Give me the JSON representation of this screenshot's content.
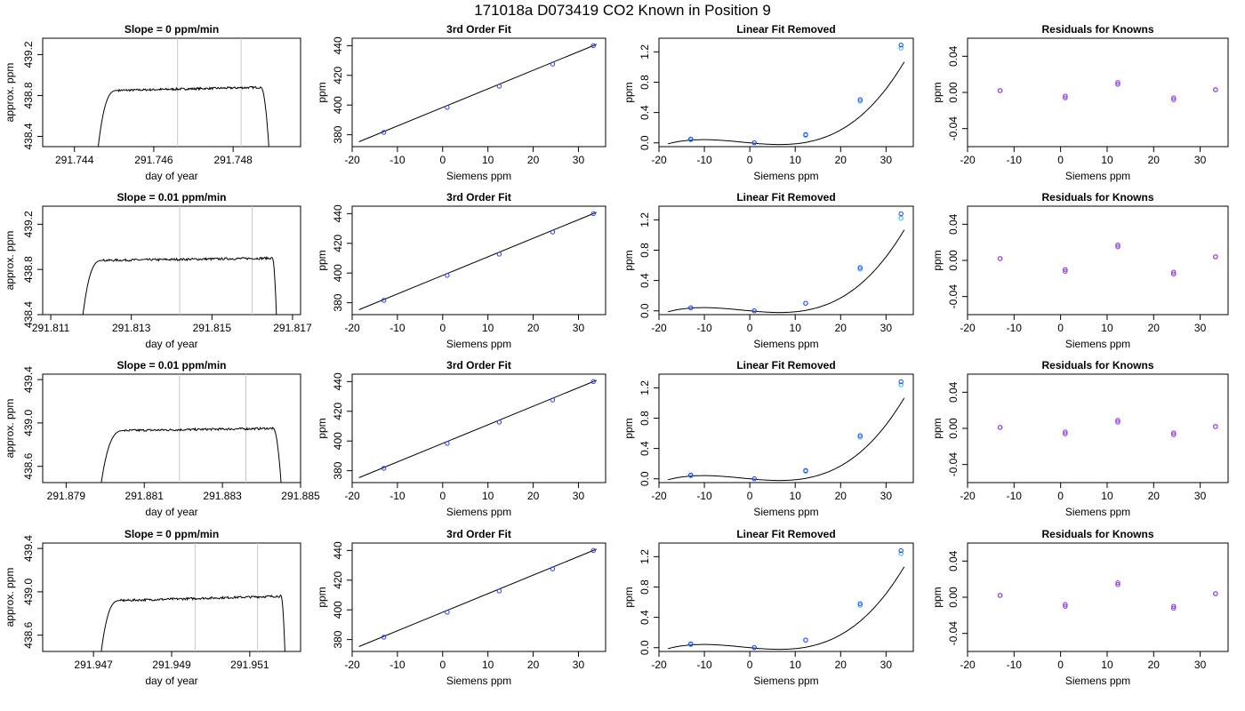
{
  "figure": {
    "title": "171018a     D073419   CO2 Known in Position  9"
  },
  "chart_data": [
    {
      "type": "line",
      "row": 0,
      "title": "Slope =  0  ppm/min",
      "xlabel": "day of year",
      "ylabel": "approx. ppm",
      "xlim": [
        291.7432,
        291.7497
      ],
      "ylim": [
        438.3,
        439.36
      ],
      "xticks": [
        291.744,
        291.746,
        291.748
      ],
      "yticks": [
        438.4,
        438.8,
        439.2
      ],
      "vlines": [
        291.7466,
        291.7482
      ],
      "profile": {
        "start": 291.7446,
        "rise_end": 291.7451,
        "fall_start": 291.7487,
        "end": 291.7489,
        "level_start": 438.85,
        "level_end": 438.88,
        "low": 438.3
      },
      "grid": false
    },
    {
      "type": "scatter",
      "row": 0,
      "title": "3rd Order Fit",
      "xlabel": "Siemens ppm",
      "ylabel": "ppm",
      "xlim": [
        -20,
        36
      ],
      "ylim": [
        372,
        445
      ],
      "xticks": [
        -20,
        -10,
        0,
        10,
        20,
        30
      ],
      "yticks": [
        380,
        400,
        420,
        440
      ],
      "points_x": [
        -13,
        1,
        12.5,
        24.3,
        33.3
      ],
      "points_y": [
        381.6,
        398.4,
        412.7,
        427.6,
        440.0
      ],
      "fit": {
        "x0": -18.5,
        "x1": 34,
        "y0": 375.3,
        "y1": 440.9
      }
    },
    {
      "type": "scatter",
      "row": 0,
      "title": "Linear Fit Removed",
      "xlabel": "Siemens ppm",
      "ylabel": "ppm",
      "xlim": [
        -20,
        36
      ],
      "ylim": [
        -0.05,
        1.38
      ],
      "xticks": [
        -20,
        -10,
        0,
        10,
        20,
        30
      ],
      "yticks": [
        0.0,
        0.4,
        0.8,
        1.2
      ],
      "points_x": [
        -13,
        1,
        12.3,
        24.3,
        33.3
      ],
      "points_y": [
        0.05,
        0.0,
        0.11,
        0.57,
        1.29
      ],
      "points_y2": [
        0.04,
        0.0,
        0.1,
        0.55,
        1.25
      ],
      "curve": {
        "c0": 0.0,
        "c1": -0.0055,
        "c2": 0.00015,
        "c3": 2.75e-05,
        "x0": -18,
        "x1": 34
      }
    },
    {
      "type": "scatter",
      "row": 0,
      "title": "Residuals for Knowns",
      "xlabel": "Siemens ppm",
      "ylabel": "ppm",
      "xlim": [
        -20,
        36
      ],
      "ylim": [
        -0.06,
        0.06
      ],
      "xticks": [
        -20,
        -10,
        0,
        10,
        20,
        30
      ],
      "yticks": [
        -0.04,
        0.0,
        0.04
      ],
      "points_x": [
        -13,
        1,
        12.3,
        24.3,
        33.3
      ],
      "points_y": [
        0.002,
        -0.004,
        0.011,
        -0.006,
        0.003
      ],
      "points_y2": [
        0.002,
        -0.006,
        0.009,
        -0.008,
        0.003
      ]
    },
    {
      "type": "line",
      "row": 1,
      "title": "Slope =  0.01  ppm/min",
      "xlabel": "day of year",
      "ylabel": "approx. ppm",
      "xlim": [
        291.8108,
        291.8172
      ],
      "ylim": [
        438.4,
        439.36
      ],
      "xticks": [
        291.811,
        291.813,
        291.815,
        291.817
      ],
      "yticks": [
        438.4,
        438.8,
        439.2
      ],
      "vlines": [
        291.8142,
        291.816
      ],
      "profile": {
        "start": 291.8118,
        "rise_end": 291.8123,
        "fall_start": 291.8165,
        "end": 291.8166,
        "level_start": 438.88,
        "level_end": 438.9,
        "low": 438.4
      },
      "grid": false
    },
    {
      "type": "scatter",
      "row": 1,
      "title": "3rd Order Fit",
      "xlabel": "Siemens ppm",
      "ylabel": "ppm",
      "xlim": [
        -20,
        36
      ],
      "ylim": [
        372,
        445
      ],
      "xticks": [
        -20,
        -10,
        0,
        10,
        20,
        30
      ],
      "yticks": [
        380,
        400,
        420,
        440
      ],
      "points_x": [
        -13,
        1,
        12.5,
        24.3,
        33.3
      ],
      "points_y": [
        381.6,
        398.4,
        412.7,
        427.6,
        440.0
      ],
      "fit": {
        "x0": -18.5,
        "x1": 34,
        "y0": 375.3,
        "y1": 440.9
      }
    },
    {
      "type": "scatter",
      "row": 1,
      "title": "Linear Fit Removed",
      "xlabel": "Siemens ppm",
      "ylabel": "ppm",
      "xlim": [
        -20,
        36
      ],
      "ylim": [
        -0.05,
        1.38
      ],
      "xticks": [
        -20,
        -10,
        0,
        10,
        20,
        30
      ],
      "yticks": [
        0.0,
        0.4,
        0.8,
        1.2
      ],
      "points_x": [
        -13,
        1,
        12.3,
        24.3,
        33.3
      ],
      "points_y": [
        0.04,
        0.0,
        0.1,
        0.57,
        1.28
      ],
      "points_y2": [
        0.04,
        0.0,
        0.1,
        0.55,
        1.22
      ],
      "curve": {
        "c0": 0.0,
        "c1": -0.0055,
        "c2": 0.00015,
        "c3": 2.75e-05,
        "x0": -18,
        "x1": 34
      }
    },
    {
      "type": "scatter",
      "row": 1,
      "title": "Residuals for Knowns",
      "xlabel": "Siemens ppm",
      "ylabel": "ppm",
      "xlim": [
        -20,
        36
      ],
      "ylim": [
        -0.06,
        0.06
      ],
      "xticks": [
        -20,
        -10,
        0,
        10,
        20,
        30
      ],
      "yticks": [
        -0.04,
        0.0,
        0.04
      ],
      "points_x": [
        -13,
        1,
        12.3,
        24.3,
        33.3
      ],
      "points_y": [
        0.002,
        -0.01,
        0.017,
        -0.013,
        0.004
      ],
      "points_y2": [
        0.002,
        -0.012,
        0.015,
        -0.015,
        0.004
      ]
    },
    {
      "type": "line",
      "row": 2,
      "title": "Slope =  0.01  ppm/min",
      "xlabel": "day of year",
      "ylabel": "approx. ppm",
      "xlim": [
        291.8784,
        291.885
      ],
      "ylim": [
        438.45,
        439.45
      ],
      "xticks": [
        291.879,
        291.881,
        291.883,
        291.885
      ],
      "yticks": [
        438.6,
        439.0,
        439.4
      ],
      "vlines": [
        291.8819,
        291.8836
      ],
      "profile": {
        "start": 291.8799,
        "rise_end": 291.8805,
        "fall_start": 291.8843,
        "end": 291.8845,
        "level_start": 438.93,
        "level_end": 438.95,
        "low": 438.45
      },
      "grid": false
    },
    {
      "type": "scatter",
      "row": 2,
      "title": "3rd Order Fit",
      "xlabel": "Siemens ppm",
      "ylabel": "ppm",
      "xlim": [
        -20,
        36
      ],
      "ylim": [
        372,
        445
      ],
      "xticks": [
        -20,
        -10,
        0,
        10,
        20,
        30
      ],
      "yticks": [
        380,
        400,
        420,
        440
      ],
      "points_x": [
        -13,
        1,
        12.5,
        24.3,
        33.3
      ],
      "points_y": [
        381.6,
        398.4,
        412.7,
        427.6,
        440.0
      ],
      "fit": {
        "x0": -18.5,
        "x1": 34,
        "y0": 375.3,
        "y1": 440.9
      }
    },
    {
      "type": "scatter",
      "row": 2,
      "title": "Linear Fit Removed",
      "xlabel": "Siemens ppm",
      "ylabel": "ppm",
      "xlim": [
        -20,
        36
      ],
      "ylim": [
        -0.05,
        1.38
      ],
      "xticks": [
        -20,
        -10,
        0,
        10,
        20,
        30
      ],
      "yticks": [
        0.0,
        0.4,
        0.8,
        1.2
      ],
      "points_x": [
        -13,
        1,
        12.3,
        24.3,
        33.3
      ],
      "points_y": [
        0.05,
        0.0,
        0.11,
        0.57,
        1.28
      ],
      "points_y2": [
        0.04,
        0.0,
        0.1,
        0.55,
        1.24
      ],
      "curve": {
        "c0": 0.0,
        "c1": -0.0055,
        "c2": 0.00015,
        "c3": 2.75e-05,
        "x0": -18,
        "x1": 34
      }
    },
    {
      "type": "scatter",
      "row": 2,
      "title": "Residuals for Knowns",
      "xlabel": "Siemens ppm",
      "ylabel": "ppm",
      "xlim": [
        -20,
        36
      ],
      "ylim": [
        -0.06,
        0.06
      ],
      "xticks": [
        -20,
        -10,
        0,
        10,
        20,
        30
      ],
      "yticks": [
        -0.04,
        0.0,
        0.04
      ],
      "points_x": [
        -13,
        1,
        12.3,
        24.3,
        33.3
      ],
      "points_y": [
        0.001,
        -0.004,
        0.009,
        -0.005,
        0.002
      ],
      "points_y2": [
        0.001,
        -0.006,
        0.007,
        -0.007,
        0.002
      ]
    },
    {
      "type": "line",
      "row": 3,
      "title": "Slope =  0  ppm/min",
      "xlabel": "day of year",
      "ylabel": "approx. ppm",
      "xlim": [
        291.9457,
        291.9523
      ],
      "ylim": [
        438.45,
        439.45
      ],
      "xticks": [
        291.947,
        291.949,
        291.951
      ],
      "yticks": [
        438.6,
        439.0,
        439.4
      ],
      "vlines": [
        291.9496,
        291.9512
      ],
      "profile": {
        "start": 291.9472,
        "rise_end": 291.9477,
        "fall_start": 291.9518,
        "end": 291.9519,
        "level_start": 438.92,
        "level_end": 438.96,
        "low": 438.45
      },
      "grid": false
    },
    {
      "type": "scatter",
      "row": 3,
      "title": "3rd Order Fit",
      "xlabel": "Siemens ppm",
      "ylabel": "ppm",
      "xlim": [
        -20,
        36
      ],
      "ylim": [
        372,
        445
      ],
      "xticks": [
        -20,
        -10,
        0,
        10,
        20,
        30
      ],
      "yticks": [
        380,
        400,
        420,
        440
      ],
      "points_x": [
        -13,
        1,
        12.5,
        24.3,
        33.3
      ],
      "points_y": [
        381.6,
        398.4,
        412.7,
        427.6,
        440.0
      ],
      "fit": {
        "x0": -18.5,
        "x1": 34,
        "y0": 375.3,
        "y1": 440.9
      }
    },
    {
      "type": "scatter",
      "row": 3,
      "title": "Linear Fit Removed",
      "xlabel": "Siemens ppm",
      "ylabel": "ppm",
      "xlim": [
        -20,
        36
      ],
      "ylim": [
        -0.05,
        1.38
      ],
      "xticks": [
        -20,
        -10,
        0,
        10,
        20,
        30
      ],
      "yticks": [
        0.0,
        0.4,
        0.8,
        1.2
      ],
      "points_x": [
        -13,
        1,
        12.3,
        24.3,
        33.3
      ],
      "points_y": [
        0.05,
        0.0,
        0.1,
        0.58,
        1.28
      ],
      "points_y2": [
        0.04,
        0.0,
        0.1,
        0.56,
        1.24
      ],
      "curve": {
        "c0": 0.0,
        "c1": -0.0055,
        "c2": 0.00015,
        "c3": 2.75e-05,
        "x0": -18,
        "x1": 34
      }
    },
    {
      "type": "scatter",
      "row": 3,
      "title": "Residuals for Knowns",
      "xlabel": "Siemens ppm",
      "ylabel": "ppm",
      "xlim": [
        -20,
        36
      ],
      "ylim": [
        -0.06,
        0.06
      ],
      "xticks": [
        -20,
        -10,
        0,
        10,
        20,
        30
      ],
      "yticks": [
        -0.04,
        0.0,
        0.04
      ],
      "points_x": [
        -13,
        1,
        12.3,
        24.3,
        33.3
      ],
      "points_y": [
        0.002,
        -0.008,
        0.016,
        -0.01,
        0.004
      ],
      "points_y2": [
        0.002,
        -0.01,
        0.014,
        -0.012,
        0.004
      ]
    }
  ],
  "colors": {
    "blue": "#1f3dff",
    "cyan": "#28b4ff",
    "purple": "#8a2be2",
    "gray": "#c8c8c8",
    "black": "#000000"
  }
}
